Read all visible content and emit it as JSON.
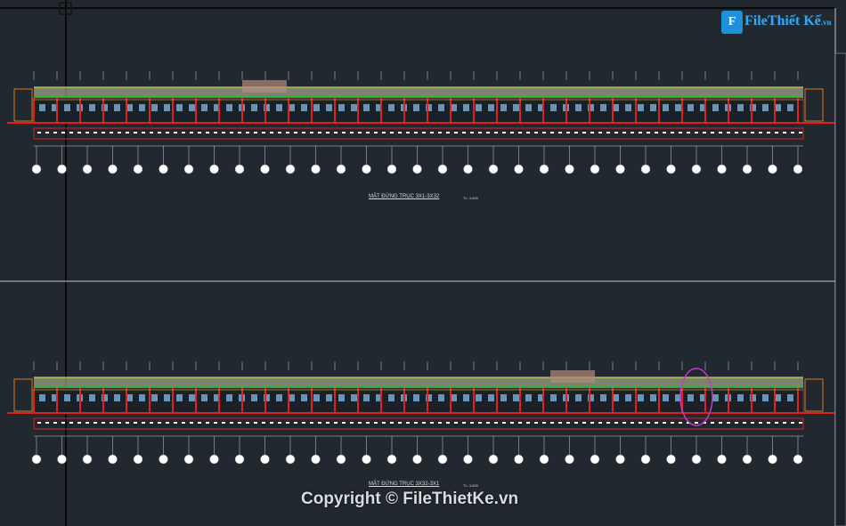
{
  "logo": {
    "mark": "F",
    "text": "FileThiết Kế",
    "suffix": ".vn"
  },
  "drawings": [
    {
      "title": "MẶT ĐỨNG TRỤC 3X1-3X32",
      "scale": "TL: 1/400"
    },
    {
      "title": "MẶT ĐỨNG TRỤC 3X32-3X1",
      "scale": "TL: 1/400"
    }
  ],
  "watermark": "Copyright © FileThietKe.vn",
  "colors": {
    "background": "#212830",
    "roof": "#c8d0a8",
    "floor_line": "#e02020",
    "green_band": "#35b23a",
    "window": "#7fb2d8",
    "axis_line": "#cfcfcf"
  }
}
